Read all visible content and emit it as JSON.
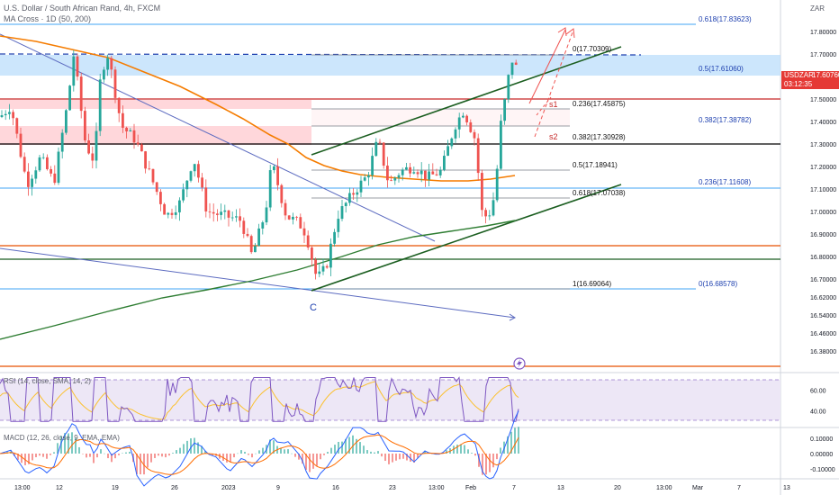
{
  "header": {
    "symbol_line": "U.S. Dollar / South African Rand, 4h, FXCM",
    "ma_line": "MA Cross · 1D (50, 200)"
  },
  "price_axis": {
    "currency_label": "ZAR",
    "ticks": [
      "17.80000",
      "17.70000",
      "17.60000",
      "17.50000",
      "17.40000",
      "17.30000",
      "17.20000",
      "17.10000",
      "17.00000",
      "16.90000",
      "16.80000",
      "16.70000",
      "16.62000",
      "16.54000",
      "16.46000",
      "16.38000"
    ],
    "tick_values": [
      17.8,
      17.7,
      17.6,
      17.5,
      17.4,
      17.3,
      17.2,
      17.1,
      17.0,
      16.9,
      16.8,
      16.7,
      16.62,
      16.54,
      16.46,
      16.38
    ],
    "last_price": {
      "symbol": "USDZAR",
      "price": "17.60760",
      "countdown": "03:12:35",
      "value": 17.6076
    }
  },
  "time_axis": {
    "labels": [
      "13:00",
      "12",
      "19",
      "26",
      "2023",
      "9",
      "16",
      "23",
      "13:00",
      "Feb",
      "7",
      "13",
      "20",
      "13:00",
      "Mar",
      "7",
      "13"
    ]
  },
  "colors": {
    "up": "#26a69a",
    "down": "#ef5350",
    "ma50": "#f57c00",
    "ma200": "#2e7d32",
    "horizontal_line": "#1e88e5",
    "orange_line": "#e65100",
    "channel": "#1b5e20",
    "price_tag": "#e53935"
  },
  "chart_data": {
    "type": "candlestick",
    "y_range": [
      16.34,
      17.93
    ],
    "fib_levels": [
      {
        "label": "0.618(17.83623)",
        "value": 17.83623
      },
      {
        "label": "0.5(17.61060)",
        "value": 17.6106
      },
      {
        "label": "0.382(17.38782)",
        "value": 17.38782
      },
      {
        "label": "0.236(17.11608)",
        "value": 17.11608
      },
      {
        "label": "0(16.68578)",
        "value": 16.68578
      }
    ],
    "fib_levels_inner": [
      {
        "label": "0(17.70309)",
        "value": 17.70309
      },
      {
        "label": "0.236(17.45875)",
        "value": 17.45875
      },
      {
        "label": "0.382(17.30928)",
        "value": 17.30928
      },
      {
        "label": "0.5(17.18941)",
        "value": 17.18941
      },
      {
        "label": "0.618(17.07038)",
        "value": 17.07038
      },
      {
        "label": "1(16.69064)",
        "value": 16.69064
      }
    ],
    "horizontal_lines": [
      {
        "color": "red",
        "value": 17.5
      },
      {
        "color": "black",
        "value": 17.31
      },
      {
        "color": "orange",
        "value": 16.86
      },
      {
        "color": "green",
        "value": 16.81
      },
      {
        "color": "orange",
        "value": 16.37
      }
    ],
    "annotations": [
      "s1",
      "s2",
      "C"
    ],
    "rsi": {
      "label": "RSI (14, close, SMA, 14, 2)",
      "ticks": [
        "60.00",
        "40.00"
      ],
      "tick_values": [
        60,
        40
      ],
      "range": [
        25,
        75
      ],
      "band": [
        30,
        70
      ]
    },
    "macd": {
      "label": "MACD (12, 26, close, 9, EMA, EMA)",
      "ticks": [
        "0.10000",
        "0.00000",
        "-0.10000"
      ],
      "tick_values": [
        0.1,
        0.0,
        -0.1
      ],
      "range": [
        -0.16,
        0.16
      ]
    }
  }
}
